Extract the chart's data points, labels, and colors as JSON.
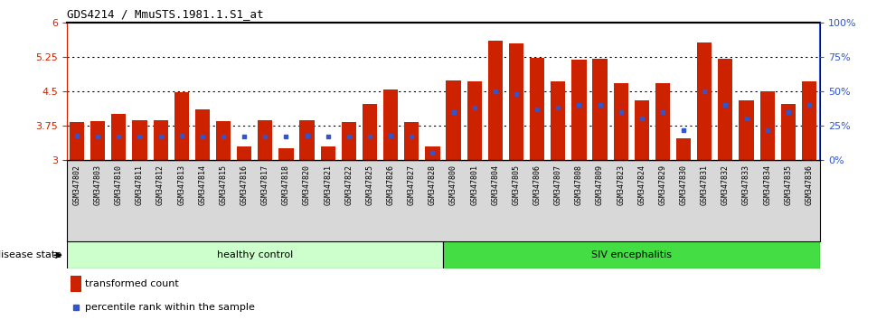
{
  "title": "GDS4214 / MmuSTS.1981.1.S1_at",
  "samples": [
    "GSM347802",
    "GSM347803",
    "GSM347810",
    "GSM347811",
    "GSM347812",
    "GSM347813",
    "GSM347814",
    "GSM347815",
    "GSM347816",
    "GSM347817",
    "GSM347818",
    "GSM347820",
    "GSM347821",
    "GSM347822",
    "GSM347825",
    "GSM347826",
    "GSM347827",
    "GSM347828",
    "GSM347800",
    "GSM347801",
    "GSM347804",
    "GSM347805",
    "GSM347806",
    "GSM347807",
    "GSM347808",
    "GSM347809",
    "GSM347823",
    "GSM347824",
    "GSM347829",
    "GSM347830",
    "GSM347831",
    "GSM347832",
    "GSM347833",
    "GSM347834",
    "GSM347835",
    "GSM347836"
  ],
  "bar_values": [
    3.82,
    3.84,
    4.0,
    3.87,
    3.87,
    4.47,
    4.1,
    3.84,
    3.3,
    3.87,
    3.25,
    3.87,
    3.3,
    3.82,
    4.22,
    4.54,
    3.82,
    3.3,
    4.74,
    4.72,
    5.6,
    5.55,
    5.22,
    4.72,
    5.18,
    5.2,
    4.68,
    4.3,
    4.68,
    3.48,
    5.56,
    5.2,
    4.3,
    4.5,
    4.22,
    4.72
  ],
  "percentile_pct": [
    18,
    17,
    17,
    17,
    17,
    18,
    17,
    17,
    17,
    17,
    17,
    18,
    17,
    17,
    17,
    18,
    17,
    5,
    35,
    38,
    50,
    48,
    37,
    38,
    40,
    40,
    35,
    30,
    35,
    22,
    50,
    40,
    30,
    22,
    35,
    40
  ],
  "ylim_left": [
    3.0,
    6.0
  ],
  "ylim_right": [
    0,
    100
  ],
  "yticks_left": [
    3.0,
    3.75,
    4.5,
    5.25,
    6.0
  ],
  "ytick_labels_left": [
    "3",
    "3.75",
    "4.5",
    "5.25",
    "6"
  ],
  "yticks_right": [
    0,
    25,
    50,
    75,
    100
  ],
  "ytick_labels_right": [
    "0%",
    "25%",
    "50%",
    "75%",
    "100%"
  ],
  "gridlines": [
    3.75,
    4.5,
    5.25
  ],
  "bar_color": "#cc2200",
  "dot_color": "#3355cc",
  "healthy_count": 18,
  "healthy_label": "healthy control",
  "siv_label": "SIV encephalitis",
  "disease_state_label": "disease state",
  "legend_bar_label": "transformed count",
  "legend_dot_label": "percentile rank within the sample",
  "bar_width": 0.7,
  "healthy_color": "#ccffcc",
  "siv_color": "#44dd44",
  "tick_bg_color": "#d8d8d8"
}
